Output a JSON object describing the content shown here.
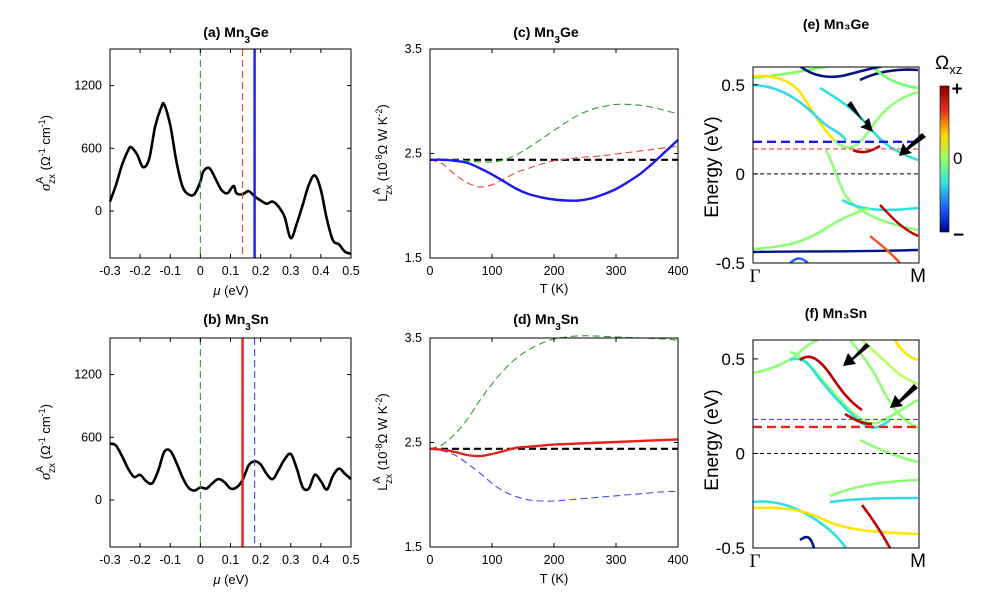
{
  "chart_data": [
    {
      "id": "a",
      "type": "line",
      "title": "(a) Mn",
      "title_sub": "3",
      "title_tail": "Ge",
      "xlabel_sym": "μ",
      "xlabel_unit": " (eV)",
      "ylabel": "σ^A_zx (Ω^-1 cm^-1)",
      "xlim": [
        -0.3,
        0.5
      ],
      "ylim": [
        -450,
        1550
      ],
      "xticks": [
        "-0.3",
        "-0.2",
        "-0.1",
        "0",
        "0.1",
        "0.2",
        "0.3",
        "0.4",
        "0.5"
      ],
      "xtick_values": [
        -0.3,
        -0.2,
        -0.1,
        0,
        0.1,
        0.2,
        0.3,
        0.4,
        0.5
      ],
      "yticks": [
        "0",
        "600",
        "1200"
      ],
      "ytick_values": [
        0,
        600,
        1200
      ],
      "series": [
        {
          "name": "sigma",
          "color": "#000000",
          "width": 2.6,
          "dash": "",
          "x": [
            -0.3,
            -0.28,
            -0.26,
            -0.24,
            -0.23,
            -0.21,
            -0.19,
            -0.17,
            -0.15,
            -0.13,
            -0.12,
            -0.1,
            -0.08,
            -0.06,
            -0.04,
            -0.02,
            0.0,
            0.01,
            0.03,
            0.05,
            0.07,
            0.09,
            0.11,
            0.12,
            0.14,
            0.16,
            0.18,
            0.2,
            0.22,
            0.24,
            0.26,
            0.28,
            0.3,
            0.32,
            0.34,
            0.36,
            0.38,
            0.4,
            0.42,
            0.44,
            0.46,
            0.48,
            0.5
          ],
          "y": [
            90,
            250,
            440,
            580,
            610,
            540,
            420,
            500,
            810,
            990,
            1020,
            820,
            480,
            240,
            160,
            160,
            280,
            380,
            410,
            310,
            200,
            170,
            240,
            170,
            160,
            190,
            140,
            100,
            70,
            90,
            40,
            -60,
            -260,
            -120,
            60,
            250,
            340,
            200,
            -80,
            -280,
            -320,
            -390,
            -410
          ]
        },
        {
          "name": "green",
          "color": "#2e9e2e",
          "width": 1.1,
          "dash": "7,4",
          "vline": 0.0
        },
        {
          "name": "red",
          "color": "#e8473f",
          "width": 1.1,
          "dash": "7,4",
          "vline": 0.14
        },
        {
          "name": "blue",
          "color": "#1a1aee",
          "width": 2.4,
          "dash": "",
          "vline": 0.18
        }
      ]
    },
    {
      "id": "b",
      "type": "line",
      "title": "(b) Mn",
      "title_sub": "3",
      "title_tail": "Sn",
      "xlabel_sym": "μ",
      "xlabel_unit": " (eV)",
      "ylabel": "σ^A_zx (Ω^-1 cm^-1)",
      "xlim": [
        -0.3,
        0.5
      ],
      "ylim": [
        -450,
        1550
      ],
      "xticks": [
        "-0.3",
        "-0.2",
        "-0.1",
        "0",
        "0.1",
        "0.2",
        "0.3",
        "0.4",
        "0.5"
      ],
      "xtick_values": [
        -0.3,
        -0.2,
        -0.1,
        0,
        0.1,
        0.2,
        0.3,
        0.4,
        0.5
      ],
      "yticks": [
        "0",
        "600",
        "1200"
      ],
      "ytick_values": [
        0,
        600,
        1200
      ],
      "series": [
        {
          "name": "sigma",
          "color": "#000000",
          "width": 2.6,
          "dash": "",
          "x": [
            -0.3,
            -0.28,
            -0.26,
            -0.24,
            -0.22,
            -0.2,
            -0.18,
            -0.16,
            -0.14,
            -0.12,
            -0.1,
            -0.08,
            -0.06,
            -0.04,
            -0.02,
            0.0,
            0.02,
            0.04,
            0.06,
            0.08,
            0.1,
            0.12,
            0.14,
            0.16,
            0.18,
            0.2,
            0.22,
            0.24,
            0.26,
            0.28,
            0.3,
            0.32,
            0.34,
            0.36,
            0.38,
            0.4,
            0.42,
            0.44,
            0.46,
            0.48,
            0.5
          ],
          "y": [
            540,
            520,
            420,
            300,
            220,
            240,
            180,
            160,
            280,
            460,
            470,
            360,
            220,
            120,
            90,
            120,
            110,
            160,
            200,
            170,
            110,
            120,
            190,
            330,
            370,
            340,
            250,
            200,
            290,
            390,
            440,
            300,
            120,
            110,
            240,
            180,
            100,
            230,
            300,
            250,
            200
          ]
        },
        {
          "name": "green",
          "color": "#2e9e2e",
          "width": 1.1,
          "dash": "7,4",
          "vline": 0.0
        },
        {
          "name": "red",
          "color": "#e8221c",
          "width": 2.4,
          "dash": "",
          "vline": 0.14
        },
        {
          "name": "blue",
          "color": "#4a4ae8",
          "width": 1.1,
          "dash": "7,4",
          "vline": 0.18
        }
      ]
    },
    {
      "id": "c",
      "type": "line",
      "title": "(c) Mn",
      "title_sub": "3",
      "title_tail": "Ge",
      "xlabel": "T (K)",
      "ylabel": "L^A_zx (10^-8 Ω W K^-2)",
      "xlim": [
        0,
        400
      ],
      "ylim": [
        1.5,
        3.5
      ],
      "xticks": [
        "0",
        "100",
        "200",
        "300",
        "400"
      ],
      "xtick_values": [
        0,
        100,
        200,
        300,
        400
      ],
      "yticks": [
        "1.5",
        "2.5",
        "3.5"
      ],
      "ytick_values": [
        1.5,
        2.5,
        3.5
      ],
      "series": [
        {
          "name": "lorenz",
          "color": "#000000",
          "width": 2.2,
          "dash": "7,4",
          "x": [
            0,
            400
          ],
          "y": [
            2.44,
            2.44
          ]
        },
        {
          "name": "green",
          "color": "#2e9e2e",
          "width": 1.1,
          "dash": "7,4",
          "x": [
            0,
            20,
            40,
            60,
            80,
            100,
            120,
            140,
            160,
            180,
            200,
            220,
            240,
            260,
            280,
            300,
            320,
            340,
            360,
            380,
            400
          ],
          "y": [
            2.44,
            2.44,
            2.44,
            2.43,
            2.42,
            2.42,
            2.44,
            2.49,
            2.56,
            2.64,
            2.72,
            2.8,
            2.87,
            2.92,
            2.95,
            2.97,
            2.97,
            2.96,
            2.94,
            2.91,
            2.88
          ]
        },
        {
          "name": "red",
          "color": "#e8473f",
          "width": 1.1,
          "dash": "7,4",
          "x": [
            0,
            20,
            40,
            60,
            80,
            100,
            120,
            140,
            160,
            180,
            200,
            240,
            280,
            320,
            360,
            400
          ],
          "y": [
            2.44,
            2.4,
            2.3,
            2.22,
            2.18,
            2.2,
            2.26,
            2.32,
            2.36,
            2.4,
            2.43,
            2.46,
            2.48,
            2.51,
            2.54,
            2.57
          ]
        },
        {
          "name": "blue",
          "color": "#1a1aee",
          "width": 2.4,
          "dash": "",
          "x": [
            0,
            20,
            40,
            60,
            80,
            100,
            120,
            140,
            160,
            180,
            200,
            220,
            240,
            260,
            280,
            300,
            320,
            340,
            360,
            380,
            400
          ],
          "y": [
            2.44,
            2.44,
            2.43,
            2.41,
            2.36,
            2.3,
            2.23,
            2.16,
            2.11,
            2.08,
            2.06,
            2.05,
            2.05,
            2.07,
            2.11,
            2.16,
            2.23,
            2.31,
            2.41,
            2.52,
            2.63
          ]
        }
      ]
    },
    {
      "id": "d",
      "type": "line",
      "title": "(d) Mn",
      "title_sub": "3",
      "title_tail": "Sn",
      "xlabel": "T (K)",
      "ylabel": "L^A_zx (10^-8 Ω W K^-2)",
      "xlim": [
        0,
        400
      ],
      "ylim": [
        1.5,
        3.5
      ],
      "xticks": [
        "0",
        "100",
        "200",
        "300",
        "400"
      ],
      "xtick_values": [
        0,
        100,
        200,
        300,
        400
      ],
      "yticks": [
        "1.5",
        "2.5",
        "3.5"
      ],
      "ytick_values": [
        1.5,
        2.5,
        3.5
      ],
      "series": [
        {
          "name": "lorenz",
          "color": "#000000",
          "width": 2.2,
          "dash": "7,4",
          "x": [
            0,
            400
          ],
          "y": [
            2.44,
            2.44
          ]
        },
        {
          "name": "green",
          "color": "#2e9e2e",
          "width": 1.1,
          "dash": "7,4",
          "x": [
            0,
            20,
            40,
            60,
            80,
            100,
            120,
            140,
            160,
            180,
            200,
            220,
            240,
            260,
            300,
            340,
            380,
            400
          ],
          "y": [
            2.44,
            2.48,
            2.58,
            2.72,
            2.9,
            3.06,
            3.2,
            3.31,
            3.39,
            3.45,
            3.49,
            3.51,
            3.52,
            3.52,
            3.51,
            3.5,
            3.49,
            3.48
          ]
        },
        {
          "name": "blue",
          "color": "#4a4ae8",
          "width": 1.1,
          "dash": "7,4",
          "x": [
            0,
            20,
            40,
            60,
            80,
            100,
            120,
            140,
            160,
            180,
            200,
            220,
            260,
            300,
            340,
            380,
            400
          ],
          "y": [
            2.44,
            2.42,
            2.38,
            2.3,
            2.21,
            2.11,
            2.03,
            1.98,
            1.95,
            1.94,
            1.94,
            1.95,
            1.97,
            1.99,
            2.01,
            2.03,
            2.03
          ]
        },
        {
          "name": "red",
          "color": "#e8221c",
          "width": 2.4,
          "dash": "",
          "x": [
            0,
            20,
            40,
            60,
            80,
            100,
            120,
            140,
            160,
            180,
            200,
            240,
            280,
            320,
            360,
            400
          ],
          "y": [
            2.44,
            2.43,
            2.41,
            2.38,
            2.37,
            2.39,
            2.42,
            2.45,
            2.46,
            2.47,
            2.48,
            2.49,
            2.5,
            2.51,
            2.52,
            2.53
          ]
        }
      ]
    },
    {
      "id": "e",
      "type": "line",
      "title": "(e) Mn₃Ge",
      "ylabel": "Energy (eV)",
      "xticks": [
        "Γ",
        "M"
      ],
      "yticks": [
        "-0.5",
        "0",
        "0.5"
      ],
      "ytick_values": [
        -0.5,
        0,
        0.5
      ],
      "ylim": [
        -0.5,
        0.6
      ],
      "hlines": [
        {
          "y": 0.18,
          "color": "#1a1aee",
          "width": 2.4,
          "dash": "9,5"
        },
        {
          "y": 0.14,
          "color": "#e8473f",
          "width": 1.1,
          "dash": "5,3"
        },
        {
          "y": 0.0,
          "color": "#000000",
          "width": 1.0,
          "dash": "4,3"
        }
      ],
      "arrows": 2
    },
    {
      "id": "f",
      "type": "line",
      "title": "(f) Mn₃Sn",
      "ylabel": "Energy (eV)",
      "xticks": [
        "Γ",
        "M"
      ],
      "yticks": [
        "-0.5",
        "0",
        "0.5"
      ],
      "ytick_values": [
        -0.5,
        0,
        0.5
      ],
      "ylim": [
        -0.5,
        0.6
      ],
      "hlines": [
        {
          "y": 0.18,
          "color": "#4a4ae8",
          "width": 1.1,
          "dash": "5,3"
        },
        {
          "y": 0.14,
          "color": "#e8221c",
          "width": 2.4,
          "dash": "9,5"
        },
        {
          "y": 0.0,
          "color": "#000000",
          "width": 1.0,
          "dash": "4,3"
        }
      ],
      "arrows": 2
    }
  ],
  "colorbar": {
    "label": "Ω",
    "label_sub": "xz",
    "max_label": "+",
    "mid_label": "0",
    "min_label": "−",
    "colors": [
      "#8b0000",
      "#e0301e",
      "#ffd400",
      "#9aff66",
      "#2fe0e0",
      "#1e60ff",
      "#00008b"
    ]
  }
}
